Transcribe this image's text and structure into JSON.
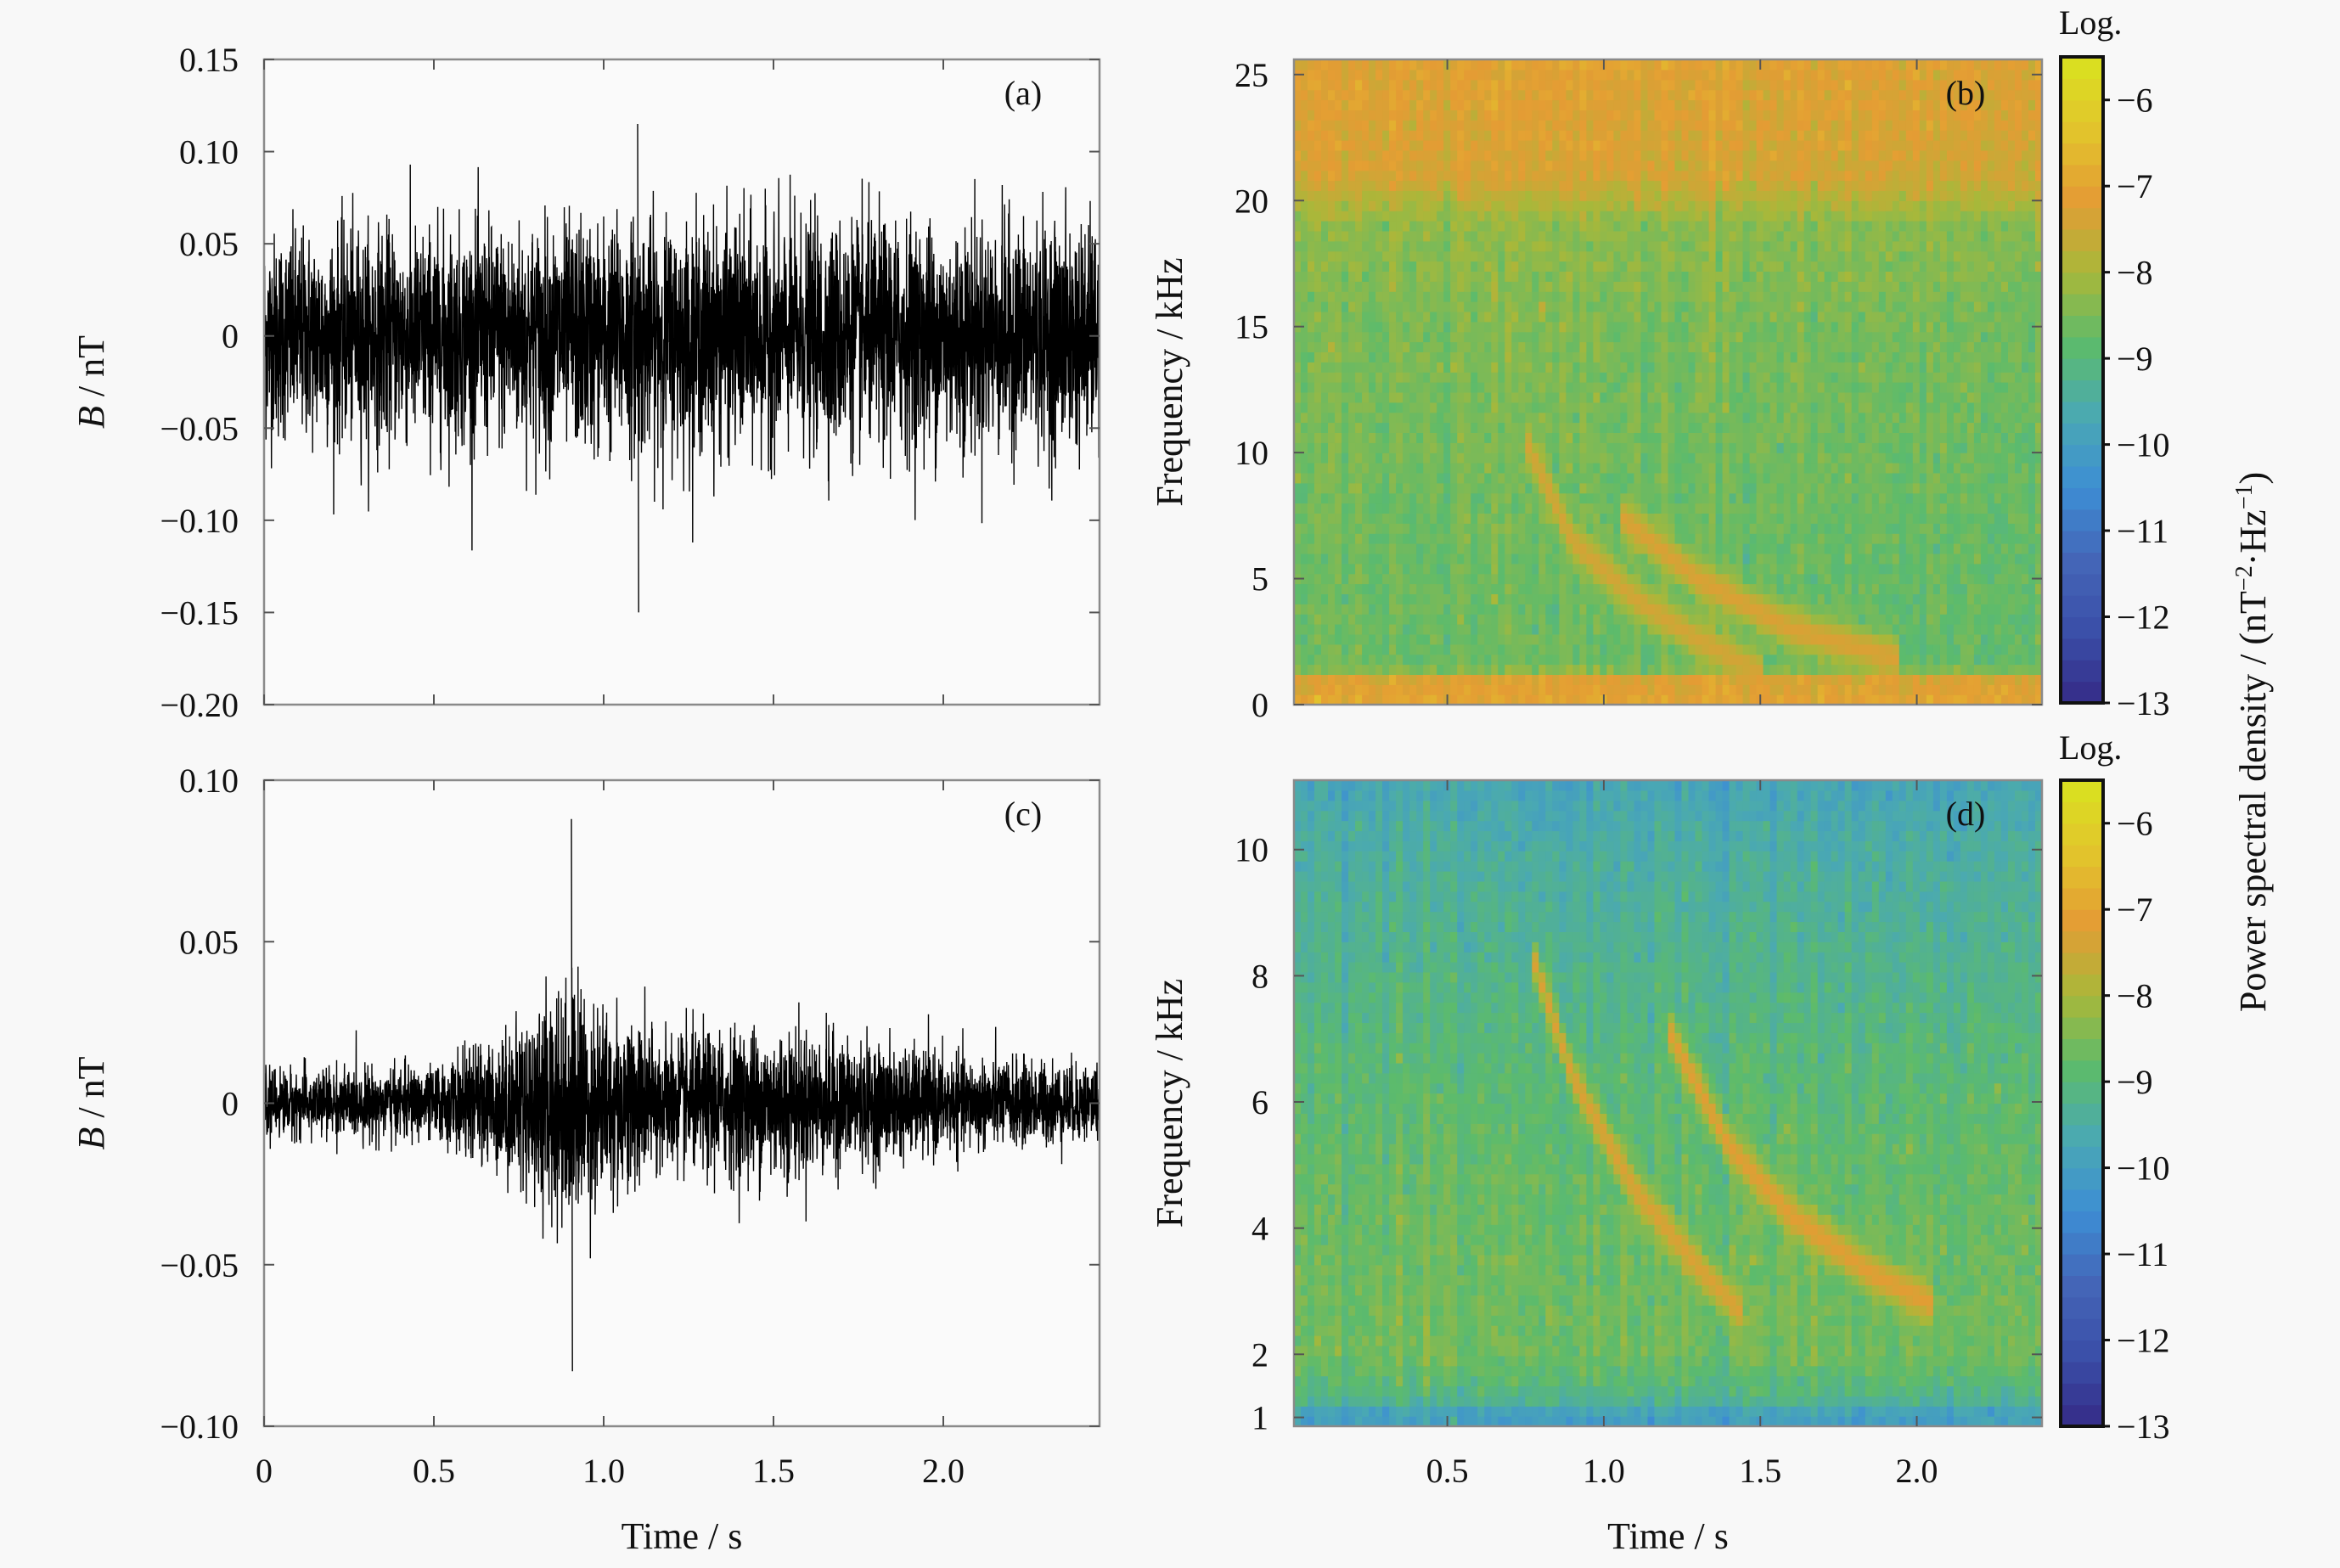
{
  "chart_data": [
    {
      "panel": "(a)",
      "type": "line",
      "ylabel_symbol": "B",
      "ylabel_unit": " / nT",
      "xlim": [
        0,
        2.46
      ],
      "ylim": [
        -0.2,
        0.15
      ],
      "yticks": [
        0.15,
        0.1,
        0.05,
        0,
        -0.05,
        -0.1,
        -0.15,
        -0.2
      ],
      "ytick_labels": [
        "0.15",
        "0.10",
        "0.05",
        "0",
        "−0.05",
        "−0.10",
        "−0.15",
        "−0.20"
      ],
      "xticks": [
        0,
        0.5,
        1.0,
        1.5,
        2.0
      ],
      "envelope": {
        "t": [
          0,
          0.5,
          1.0,
          1.5,
          2.0,
          2.46
        ],
        "amplitude": [
          0.065,
          0.068,
          0.072,
          0.07,
          0.072,
          0.07
        ]
      },
      "extremes": {
        "max": 0.115,
        "min": -0.15
      }
    },
    {
      "panel": "(b)",
      "type": "heatmap",
      "ylabel": "Frequency / kHz",
      "xlim": [
        0.01,
        2.4
      ],
      "ylim": [
        0,
        25.6
      ],
      "yticks": [
        0,
        5,
        10,
        15,
        20,
        25
      ],
      "ytick_labels": [
        "0",
        "5",
        "10",
        "15",
        "20",
        "25"
      ],
      "xticks": [
        0.5,
        1.0,
        1.5,
        2.0
      ],
      "background": {
        "freq_khz": [
          0,
          1,
          1.5,
          5,
          10,
          15,
          19,
          21,
          25.6
        ],
        "log_psd": [
          -7.0,
          -7.3,
          -8.7,
          -8.7,
          -8.6,
          -8.5,
          -8.3,
          -7.4,
          -7.2
        ]
      },
      "traces": [
        {
          "points": [
            [
              0.75,
              10.5
            ],
            [
              0.9,
              6.5
            ],
            [
              1.1,
              4.2
            ],
            [
              1.3,
              2.6
            ],
            [
              1.5,
              1.3
            ]
          ],
          "log_psd": -7.4
        },
        {
          "points": [
            [
              1.05,
              7.5
            ],
            [
              1.3,
              5.0
            ],
            [
              1.6,
              3.0
            ],
            [
              1.95,
              1.8
            ]
          ],
          "log_psd": -7.3
        }
      ]
    },
    {
      "panel": "(c)",
      "type": "line",
      "xlabel": "Time / s",
      "ylabel_symbol": "B",
      "ylabel_unit": " / nT",
      "xlim": [
        0,
        2.46
      ],
      "ylim": [
        -0.1,
        0.1
      ],
      "yticks": [
        0.1,
        0.05,
        0,
        -0.05,
        -0.1
      ],
      "ytick_labels": [
        "0.10",
        "0.05",
        "0",
        "−0.05",
        "−0.10"
      ],
      "xticks": [
        0,
        0.5,
        1.0,
        1.5,
        2.0
      ],
      "xtick_labels": [
        "0",
        "0.5",
        "1.0",
        "1.5",
        "2.0"
      ],
      "envelope": {
        "t": [
          0,
          0.5,
          0.7,
          0.9,
          1.0,
          1.2,
          1.5,
          1.8,
          2.1,
          2.46
        ],
        "amplitude": [
          0.012,
          0.013,
          0.024,
          0.045,
          0.035,
          0.024,
          0.028,
          0.021,
          0.016,
          0.014
        ]
      },
      "extremes": {
        "max": 0.088,
        "min": -0.083
      }
    },
    {
      "panel": "(d)",
      "type": "heatmap",
      "xlabel": "Time / s",
      "ylabel": "Frequency / kHz",
      "xlim": [
        0.01,
        2.4
      ],
      "ylim": [
        0.86,
        11.1
      ],
      "yticks": [
        1,
        2,
        4,
        6,
        8,
        10
      ],
      "ytick_labels": [
        "1",
        "2",
        "4",
        "6",
        "8",
        "10"
      ],
      "xticks": [
        0.5,
        1.0,
        1.5,
        2.0
      ],
      "xtick_labels": [
        "0.5",
        "1.0",
        "1.5",
        "2.0"
      ],
      "background": {
        "freq_khz": [
          0.86,
          1.05,
          1.3,
          2,
          4,
          6,
          8,
          10,
          11.1
        ],
        "log_psd": [
          -10.0,
          -10.0,
          -9.2,
          -8.6,
          -8.7,
          -8.9,
          -9.2,
          -9.5,
          -9.8
        ]
      },
      "traces": [
        {
          "points": [
            [
              0.78,
              8.2
            ],
            [
              0.9,
              6.4
            ],
            [
              1.1,
              4.6
            ],
            [
              1.3,
              3.4
            ],
            [
              1.45,
              2.6
            ]
          ],
          "log_psd": -7.3
        },
        {
          "points": [
            [
              1.2,
              7.2
            ],
            [
              1.4,
              5.3
            ],
            [
              1.6,
              4.2
            ],
            [
              1.85,
              3.3
            ],
            [
              2.05,
              2.8
            ]
          ],
          "log_psd": -7.2
        }
      ]
    }
  ],
  "colorbar": {
    "title": "Log.",
    "range": [
      -13,
      -5.5
    ],
    "ticks": [
      -6,
      -7,
      -8,
      -9,
      -10,
      -11,
      -12,
      -13
    ],
    "tick_labels": [
      "−6",
      "−7",
      "−8",
      "−9",
      "−10",
      "−11",
      "−12",
      "−13"
    ],
    "colormap": [
      "#352a87",
      "#3a4fa8",
      "#4466b8",
      "#3d8ed4",
      "#4aa9b2",
      "#5cbb6c",
      "#a8b83a",
      "#e49c34",
      "#e2c52c",
      "#d8e21f"
    ],
    "label_main": "Power spectral density / (nT",
    "label_sup1": "−2",
    "label_mid": "·Hz",
    "label_sup2": "−1",
    "label_end": ")"
  }
}
